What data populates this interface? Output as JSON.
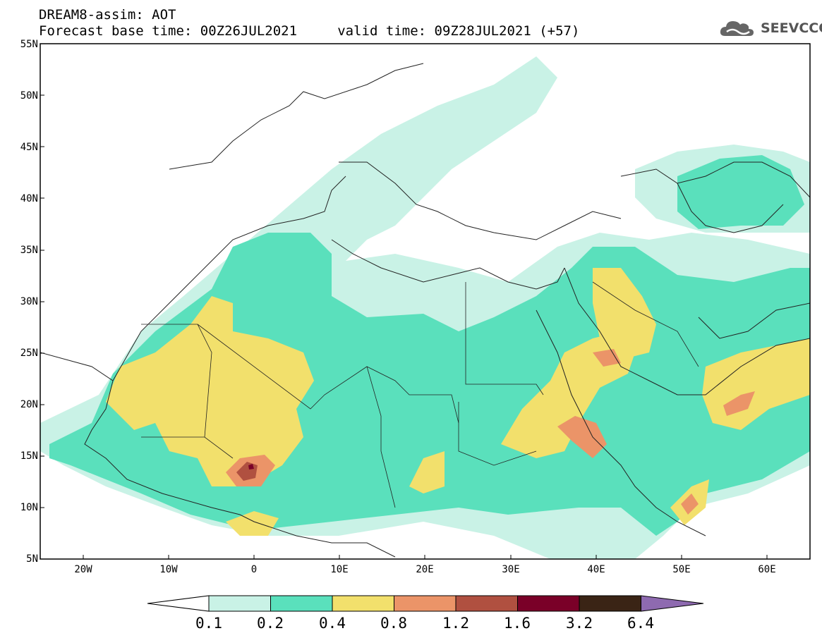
{
  "header": {
    "title_line1": "DREAM8-assim: AOT",
    "title_line2": "Forecast base time: 00Z26JUL2021     valid time: 09Z28JUL2021 (+57)"
  },
  "logo": {
    "text": "SEEVCCC",
    "icon": "cloud-logo-icon"
  },
  "axes": {
    "lat_labels": [
      "55N",
      "50N",
      "45N",
      "40N",
      "35N",
      "30N",
      "25N",
      "20N",
      "15N",
      "10N",
      "5N"
    ],
    "lon_labels": [
      "20W",
      "10W",
      "0",
      "10E",
      "20E",
      "30E",
      "40E",
      "50E",
      "60E"
    ],
    "lat_range": [
      5,
      55
    ],
    "lon_range": [
      -25,
      65
    ]
  },
  "colorbar": {
    "labels": [
      "0.1",
      "0.2",
      "0.4",
      "0.8",
      "1.2",
      "1.6",
      "3.2",
      "6.4"
    ],
    "colors": [
      "#ffffff",
      "#c9f2e6",
      "#5ae0bc",
      "#f2e06c",
      "#eb9468",
      "#b05040",
      "#7a0028",
      "#3a2415",
      "#8e6ab0"
    ]
  },
  "map_colors": {
    "water_land": "#ffffff",
    "level_0_1": "#c9f2e6",
    "level_0_2": "#5ae0bc",
    "level_0_4": "#f2e06c",
    "level_0_8": "#eb9468",
    "level_1_2": "#b05040",
    "level_1_6": "#7a0028"
  }
}
